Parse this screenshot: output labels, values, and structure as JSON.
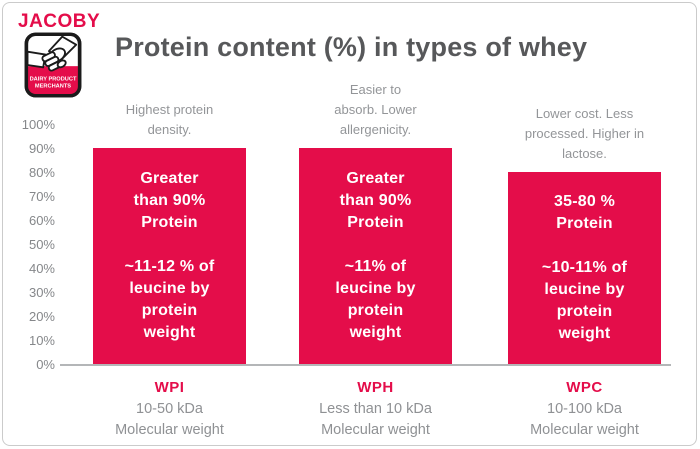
{
  "window": {
    "background": "#ffffff",
    "border_color": "#cbcbcb"
  },
  "logo": {
    "brand": "JACOBY",
    "badge_line1": "DAIRY PRODUCT",
    "badge_line2": "MERCHANTS",
    "accent": "#e40d4a"
  },
  "header": {
    "title": "Protein content (%) in types of whey"
  },
  "colors": {
    "accent_red": "#e40d4a",
    "title_gray": "#57585a",
    "note_gray": "#939598",
    "tick_gray": "#85878a",
    "axis_line": "#b4b6b8",
    "bar_text": "#ffffff"
  },
  "chart_data": {
    "type": "bar",
    "title": "Protein content (%) in types of whey",
    "xlabel": "",
    "ylabel": "",
    "ylim": [
      0,
      100
    ],
    "grid": false,
    "legend": false,
    "bar_color": "#e40d4a",
    "y_ticks": [
      "0%",
      "10%",
      "20%",
      "30%",
      "40%",
      "50%",
      "60%",
      "70%",
      "80%",
      "90%",
      "100%"
    ],
    "categories": [
      "WPI",
      "WPH",
      "WPC"
    ],
    "values": [
      90,
      90,
      80
    ],
    "bars": [
      {
        "category": "WPI",
        "value_pct": 90,
        "note_above": "Highest protein\ndensity.",
        "bar_text": "Greater\nthan 90%\nProtein\n\n~11-12 % of\nleucine by\nprotein\nweight",
        "sub_label": "10-50 kDa\nMolecular weight"
      },
      {
        "category": "WPH",
        "value_pct": 90,
        "note_above": "Easier to\nabsorb. Lower\nallergenicity.",
        "bar_text": "Greater\nthan 90%\nProtein\n\n~11% of\nleucine by\nprotein\nweight",
        "sub_label": "Less than 10 kDa\nMolecular weight"
      },
      {
        "category": "WPC",
        "value_pct": 80,
        "note_above": "Lower cost. Less\nprocessed. Higher in\nlactose.",
        "bar_text": "35-80 %\nProtein\n\n~10-11% of\nleucine by\nprotein\nweight",
        "sub_label": "10-100 kDa\nMolecular weight"
      }
    ]
  }
}
